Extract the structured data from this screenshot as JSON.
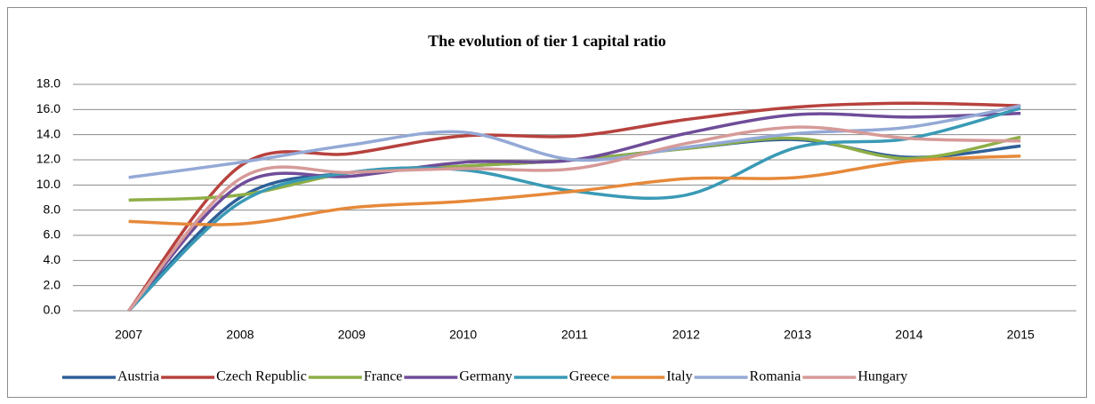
{
  "chart_data": {
    "type": "line",
    "title": "The evolution of tier 1 capital ratio",
    "categories": [
      "2007",
      "2008",
      "2009",
      "2010",
      "2011",
      "2012",
      "2013",
      "2014",
      "2015"
    ],
    "series": [
      {
        "name": "Austria",
        "color": "#2f5f98",
        "values": [
          0,
          9.0,
          11.0,
          11.5,
          12.0,
          12.9,
          13.6,
          12.2,
          13.1
        ]
      },
      {
        "name": "Czech Republic",
        "color": "#b7423e",
        "values": [
          0,
          11.5,
          12.5,
          13.9,
          13.9,
          15.2,
          16.2,
          16.5,
          16.3
        ]
      },
      {
        "name": "France",
        "color": "#8eae46",
        "values": [
          8.8,
          9.2,
          11.0,
          11.5,
          12.0,
          12.9,
          13.7,
          12.1,
          13.8
        ]
      },
      {
        "name": "Germany",
        "color": "#6f4d99",
        "values": [
          0,
          10.0,
          10.7,
          11.8,
          12.0,
          14.1,
          15.6,
          15.4,
          15.7
        ]
      },
      {
        "name": "Greece",
        "color": "#3a9ab5",
        "values": [
          0,
          8.6,
          11.0,
          11.2,
          9.5,
          9.2,
          13.0,
          13.7,
          16.1
        ]
      },
      {
        "name": "Italy",
        "color": "#e6893a",
        "values": [
          7.1,
          6.9,
          8.2,
          8.7,
          9.5,
          10.5,
          10.6,
          11.9,
          12.3
        ]
      },
      {
        "name": "Romania",
        "color": "#94a9d6",
        "values": [
          10.6,
          11.8,
          13.2,
          14.2,
          12.0,
          13.0,
          14.1,
          14.6,
          16.3
        ]
      },
      {
        "name": "Hungary",
        "color": "#d69a98",
        "values": [
          0,
          10.5,
          11.0,
          11.3,
          11.3,
          13.3,
          14.6,
          13.7,
          13.5
        ]
      }
    ],
    "ylim": [
      0,
      18
    ],
    "yticks": [
      {
        "value": 0,
        "label": "0.0"
      },
      {
        "value": 2,
        "label": "2.0"
      },
      {
        "value": 4,
        "label": "4.0"
      },
      {
        "value": 6,
        "label": "6.0"
      },
      {
        "value": 8,
        "label": "8.0"
      },
      {
        "value": 10,
        "label": "10.0"
      },
      {
        "value": 12,
        "label": "12.0"
      },
      {
        "value": 14,
        "label": "14.0"
      },
      {
        "value": 16,
        "label": "16.0"
      },
      {
        "value": 18,
        "label": "18.0"
      }
    ],
    "grid": true,
    "legend": "bottom"
  }
}
